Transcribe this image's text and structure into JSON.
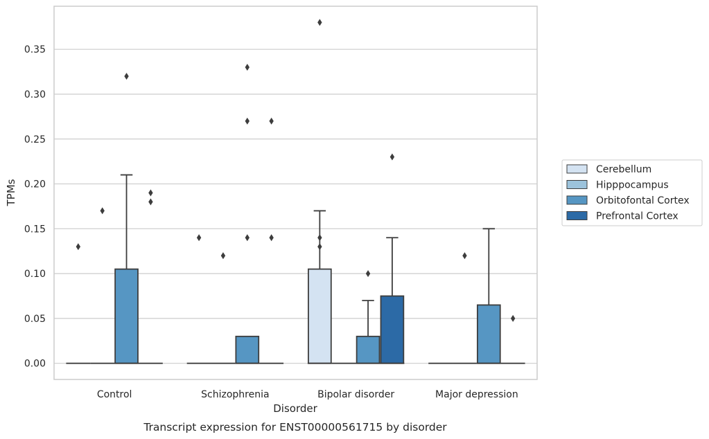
{
  "chart_data": {
    "type": "box",
    "title": "Transcript expression for ENST00000561715 by disorder",
    "xlabel": "Disorder",
    "ylabel": "TPMs",
    "categories": [
      "Control",
      "Schizophrenia",
      "Bipolar disorder",
      "Major depression"
    ],
    "ylim": [
      -0.018,
      0.398
    ],
    "yticks": [
      0.0,
      0.05,
      0.1,
      0.15,
      0.2,
      0.25,
      0.3,
      0.35
    ],
    "ytick_labels": [
      "0.00",
      "0.05",
      "0.10",
      "0.15",
      "0.20",
      "0.25",
      "0.30",
      "0.35"
    ],
    "grid": true,
    "legend_position": "right",
    "series": [
      {
        "name": "Cerebellum",
        "color": "#d4e3f2",
        "boxes": [
          {
            "q1": 0,
            "median": 0,
            "q3": 0,
            "whislo": 0,
            "whishi": 0,
            "fliers": [
              0.13
            ]
          },
          {
            "q1": 0,
            "median": 0,
            "q3": 0,
            "whislo": 0,
            "whishi": 0,
            "fliers": [
              0.14
            ]
          },
          {
            "q1": 0,
            "median": 0,
            "q3": 0.105,
            "whislo": 0,
            "whishi": 0.17,
            "fliers": [
              0.38,
              0.14,
              0.13
            ]
          },
          {
            "q1": 0,
            "median": 0,
            "q3": 0,
            "whislo": 0,
            "whishi": 0,
            "fliers": []
          }
        ]
      },
      {
        "name": "Hipppocampus",
        "color": "#9cc3dc",
        "boxes": [
          {
            "q1": 0,
            "median": 0,
            "q3": 0,
            "whislo": 0,
            "whishi": 0,
            "fliers": [
              0.17
            ]
          },
          {
            "q1": 0,
            "median": 0,
            "q3": 0,
            "whislo": 0,
            "whishi": 0,
            "fliers": [
              0.12
            ]
          },
          {
            "q1": 0,
            "median": 0,
            "q3": 0,
            "whislo": 0,
            "whishi": 0,
            "fliers": []
          },
          {
            "q1": 0,
            "median": 0,
            "q3": 0,
            "whislo": 0,
            "whishi": 0,
            "fliers": [
              0.12
            ]
          }
        ]
      },
      {
        "name": "Orbitofontal Cortex",
        "color": "#5696c3",
        "boxes": [
          {
            "q1": 0,
            "median": 0,
            "q3": 0.105,
            "whislo": 0,
            "whishi": 0.21,
            "fliers": [
              0.32
            ]
          },
          {
            "q1": 0,
            "median": 0,
            "q3": 0.03,
            "whislo": 0,
            "whishi": 0.03,
            "fliers": [
              0.33,
              0.27,
              0.14
            ]
          },
          {
            "q1": 0,
            "median": 0,
            "q3": 0.03,
            "whislo": 0,
            "whishi": 0.07,
            "fliers": [
              0.1
            ]
          },
          {
            "q1": 0,
            "median": 0,
            "q3": 0.065,
            "whislo": 0,
            "whishi": 0.15,
            "fliers": []
          }
        ]
      },
      {
        "name": "Prefrontal Cortex",
        "color": "#2c6aa6",
        "boxes": [
          {
            "q1": 0,
            "median": 0,
            "q3": 0,
            "whislo": 0,
            "whishi": 0,
            "fliers": [
              0.19,
              0.18
            ]
          },
          {
            "q1": 0,
            "median": 0,
            "q3": 0,
            "whislo": 0,
            "whishi": 0,
            "fliers": [
              0.27,
              0.14
            ]
          },
          {
            "q1": 0,
            "median": 0,
            "q3": 0.075,
            "whislo": 0,
            "whishi": 0.14,
            "fliers": [
              0.23
            ]
          },
          {
            "q1": 0,
            "median": 0,
            "q3": 0,
            "whislo": 0,
            "whishi": 0,
            "fliers": [
              0.05
            ]
          }
        ]
      }
    ]
  }
}
